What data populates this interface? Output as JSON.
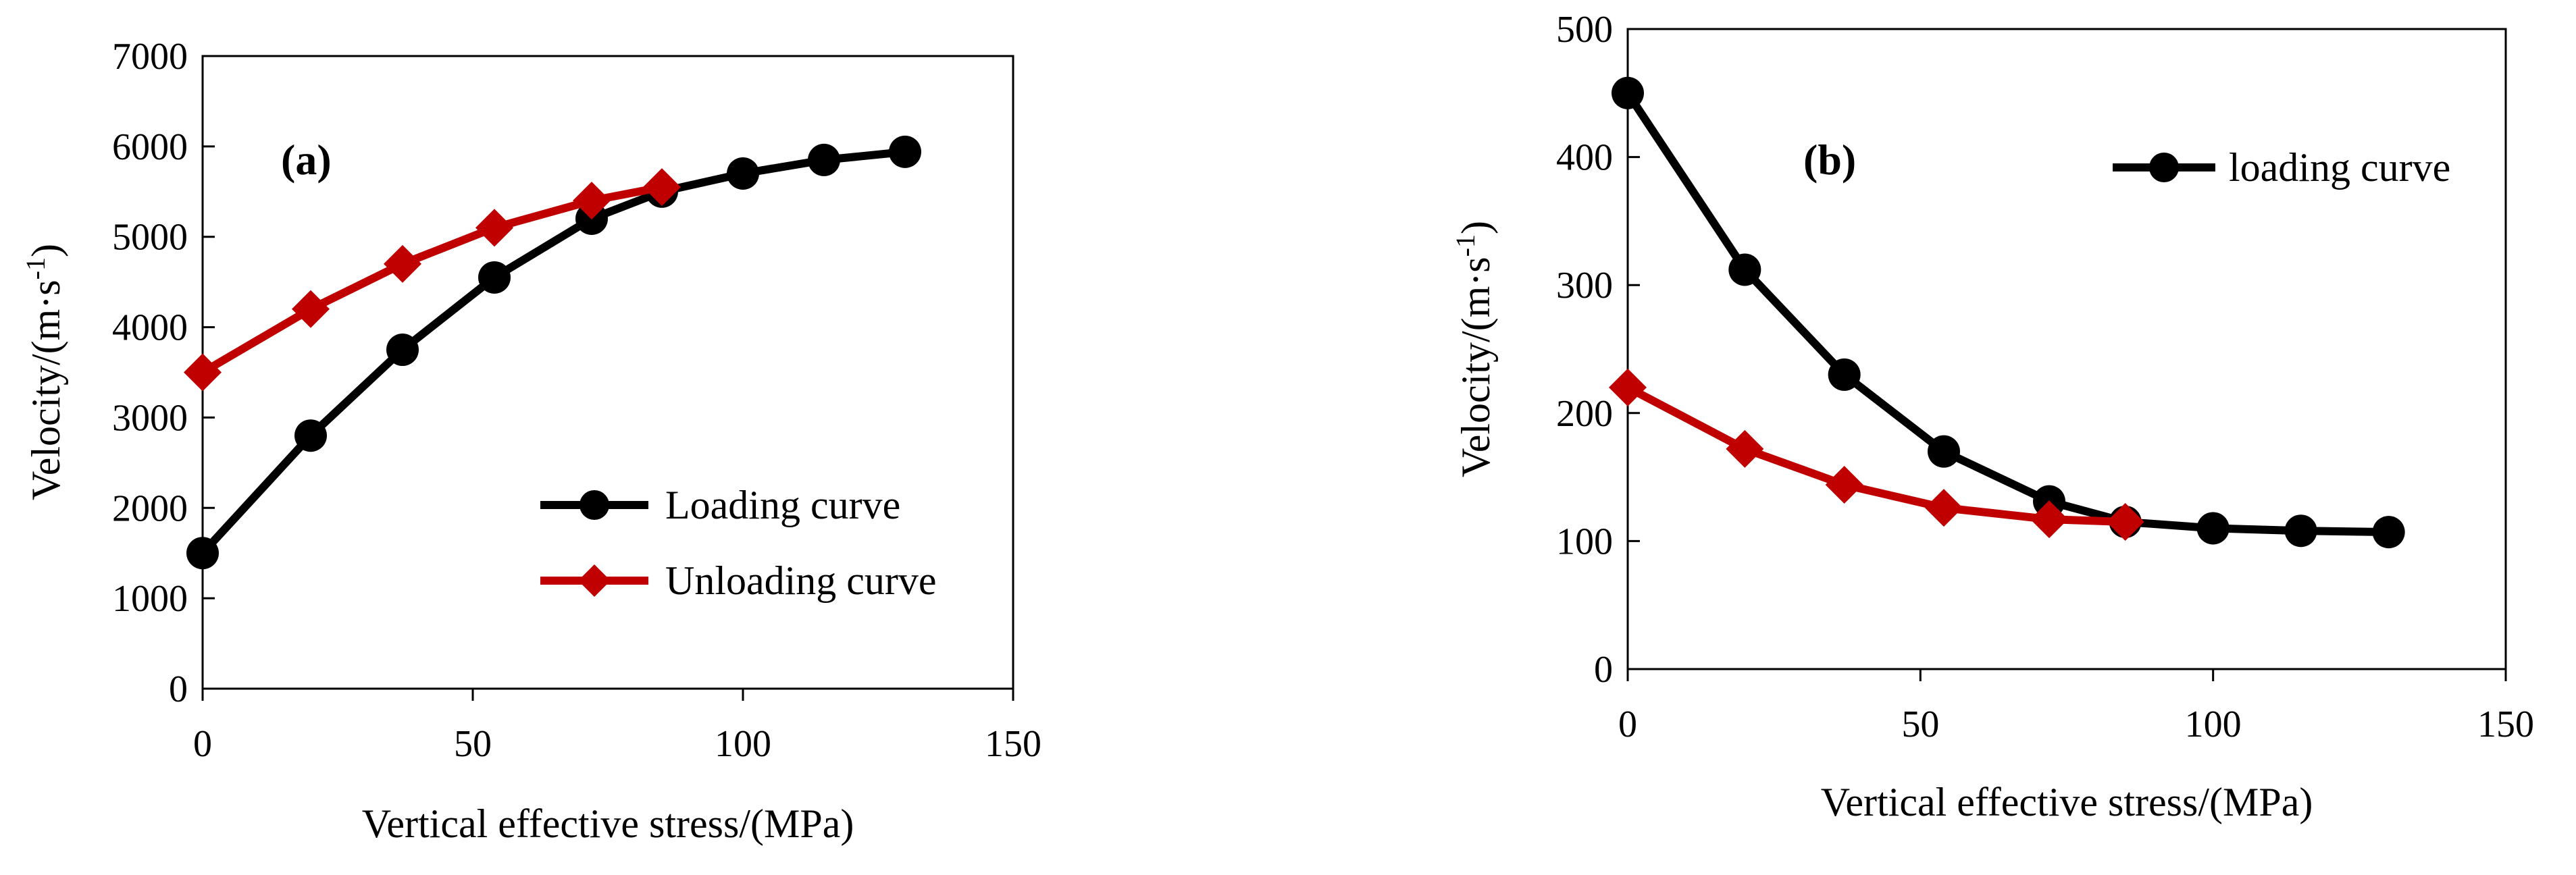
{
  "chart_data": [
    {
      "type": "line",
      "panel_label": "(a)",
      "xlabel": "Vertical effective stress/(MPa)",
      "ylabel": "Velocity/(m·s",
      "ylabel_sup": "-1",
      "ylabel_close": ")",
      "xlim": [
        0,
        150
      ],
      "ylim": [
        0,
        7000
      ],
      "xticks": [
        "0",
        "50",
        "100",
        "150"
      ],
      "yticks": [
        "0",
        "1000",
        "2000",
        "3000",
        "4000",
        "5000",
        "6000",
        "7000"
      ],
      "grid": false,
      "legend": "right",
      "series": [
        {
          "name": "Loading curve",
          "color": "#000000",
          "marker": "circle",
          "x": [
            0,
            20,
            37,
            54,
            72,
            85,
            100,
            115,
            130
          ],
          "y": [
            1500,
            2800,
            3750,
            4550,
            5200,
            5500,
            5700,
            5850,
            5940
          ]
        },
        {
          "name": "Unloading curve",
          "color": "#c00000",
          "marker": "diamond",
          "x": [
            0,
            20,
            37,
            54,
            72,
            85
          ],
          "y": [
            3500,
            4200,
            4700,
            5100,
            5400,
            5550
          ]
        }
      ]
    },
    {
      "type": "line",
      "panel_label": "(b)",
      "xlabel": "Vertical effective stress/(MPa)",
      "ylabel": "Velocity/(m·s",
      "ylabel_sup": "-1",
      "ylabel_close": ")",
      "xlim": [
        0,
        150
      ],
      "ylim": [
        0,
        500
      ],
      "xticks": [
        "0",
        "50",
        "100",
        "150"
      ],
      "yticks": [
        "0",
        "100",
        "200",
        "300",
        "400",
        "500"
      ],
      "grid": false,
      "legend": "top-right",
      "series": [
        {
          "name": "loading curve",
          "color": "#000000",
          "marker": "circle",
          "x": [
            0,
            20,
            37,
            54,
            72,
            85,
            100,
            115,
            130
          ],
          "y": [
            450,
            312,
            230,
            170,
            131,
            115,
            110,
            108,
            107
          ]
        },
        {
          "name": "",
          "color": "#c00000",
          "marker": "diamond",
          "x": [
            0,
            20,
            37,
            54,
            72,
            85
          ],
          "y": [
            220,
            172,
            144,
            126,
            117,
            115
          ]
        }
      ]
    }
  ]
}
